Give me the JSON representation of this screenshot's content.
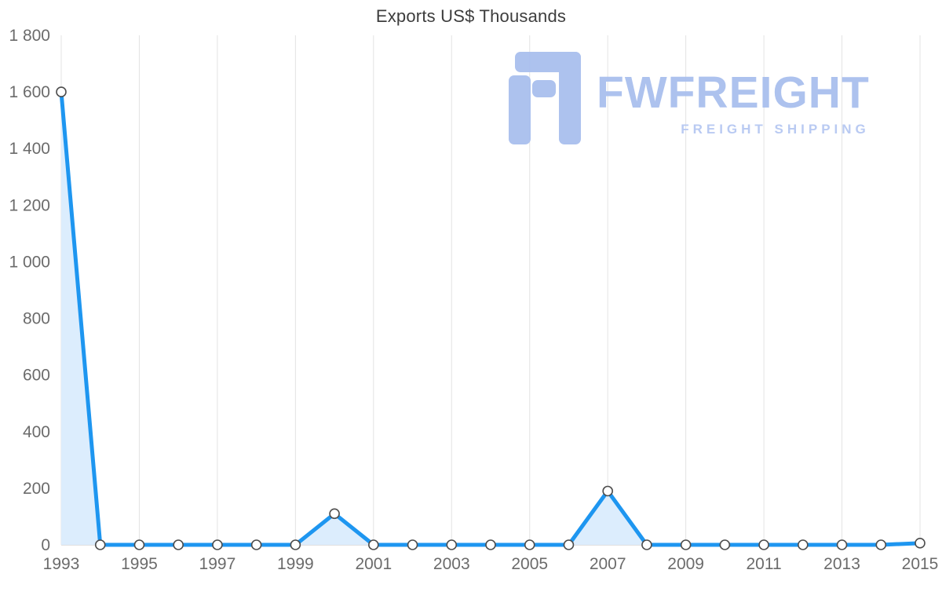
{
  "page": {
    "background": "#ffffff"
  },
  "chart_data": {
    "type": "area",
    "title": "Exports US$ Thousands",
    "x": [
      1993,
      1994,
      1995,
      1996,
      1997,
      1998,
      1999,
      2000,
      2001,
      2002,
      2003,
      2004,
      2005,
      2006,
      2007,
      2008,
      2009,
      2010,
      2011,
      2012,
      2013,
      2014,
      2015
    ],
    "series": [
      {
        "name": "Exports US$ Thousands",
        "values": [
          1600,
          0,
          0,
          0,
          0,
          0,
          0,
          110,
          0,
          0,
          0,
          0,
          0,
          0,
          190,
          0,
          0,
          0,
          0,
          0,
          0,
          0,
          6
        ]
      }
    ],
    "ylim": [
      0,
      1800
    ],
    "y_tick_step": 200,
    "y_tick_labels": [
      "0",
      "200",
      "400",
      "600",
      "800",
      "1 000",
      "1 200",
      "1 400",
      "1 600",
      "1 800"
    ],
    "x_tick_labels": [
      "1993",
      "1995",
      "1997",
      "1999",
      "2001",
      "2003",
      "2005",
      "2007",
      "2009",
      "2011",
      "2013",
      "2015"
    ],
    "grid": "vertical-only",
    "legend": "none",
    "line_color": "#1e96f0",
    "fill_color": "#dcedfd",
    "marker_fill": "#ffffff",
    "marker_stroke": "#4d4d4d",
    "grid_color": "#e3e3e3",
    "axis_color": "#c2c2c2",
    "tick_label_color": "#6b6b6b",
    "title_color": "#3d3d3d"
  },
  "watermark": {
    "brand": "FWFREIGHT",
    "tagline": "FREIGHT SHIPPING",
    "color": "#a9bfee",
    "tagline_color": "#b6c8f2"
  }
}
